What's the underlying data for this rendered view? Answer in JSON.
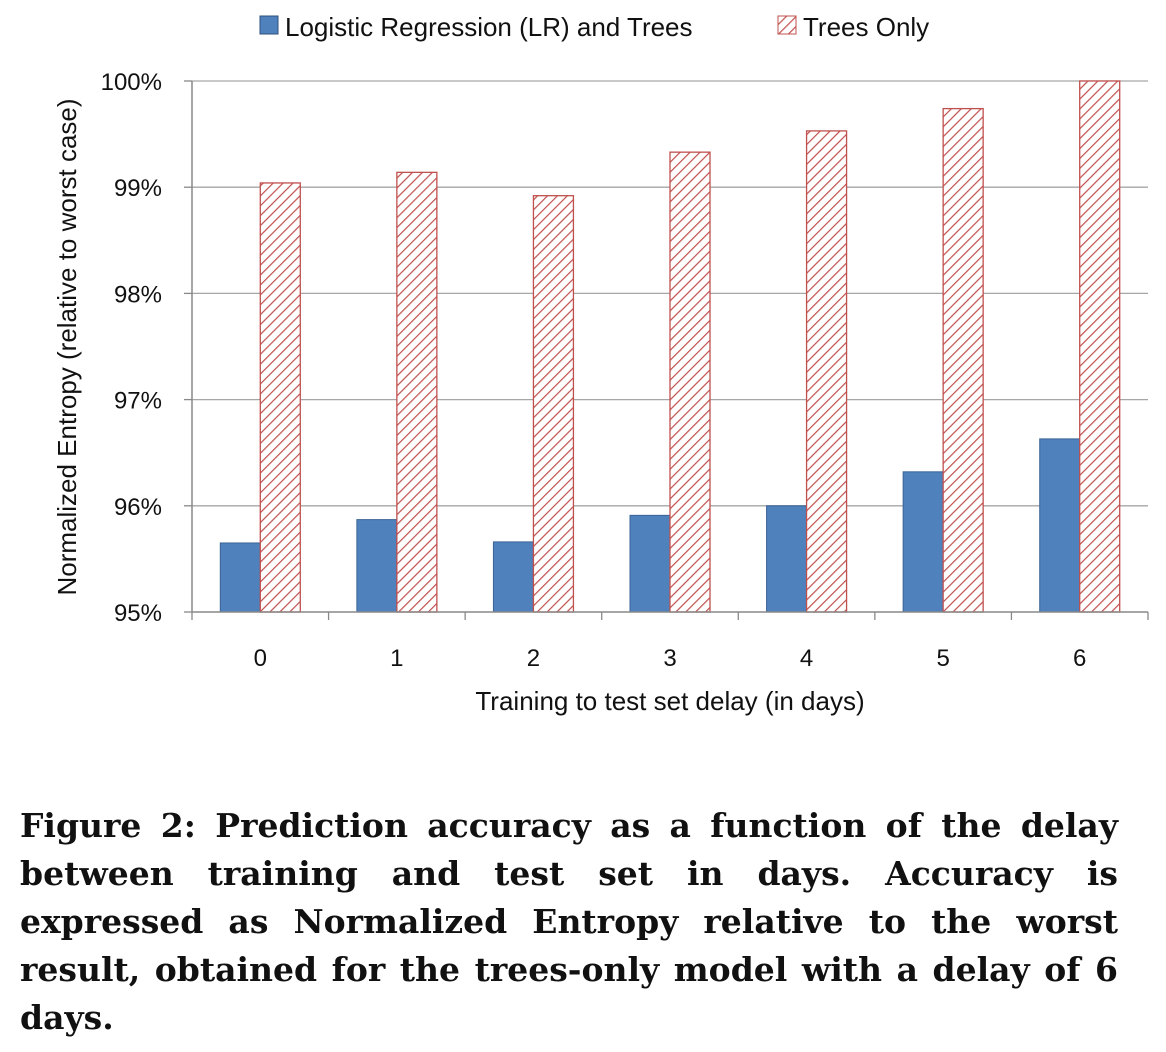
{
  "chart_data": {
    "type": "bar",
    "categories": [
      "0",
      "1",
      "2",
      "3",
      "4",
      "5",
      "6"
    ],
    "series": [
      {
        "name": "Logistic Regression (LR) and Trees",
        "values": [
          95.65,
          95.87,
          95.66,
          95.91,
          96.0,
          96.32,
          96.63
        ],
        "color": "#4f81bd",
        "pattern": "solid"
      },
      {
        "name": "Trees Only",
        "values": [
          99.04,
          99.14,
          98.92,
          99.33,
          99.53,
          99.74,
          100.0
        ],
        "color": "#c0504d",
        "pattern": "diagonal-hatch"
      }
    ],
    "xlabel": "Training to test set delay (in days)",
    "ylabel": "Normalized Entropy (relative to worst case)",
    "ylim": [
      95,
      100
    ],
    "yticks": [
      "95%",
      "96%",
      "97%",
      "98%",
      "99%",
      "100%"
    ],
    "grid": true,
    "legend_position": "top"
  },
  "caption": "Figure 2: Prediction accuracy as a function of the delay between training and test set in days. Accuracy is expressed as Normalized Entropy relative to the worst result, obtained for the trees-only model with a delay of 6 days."
}
